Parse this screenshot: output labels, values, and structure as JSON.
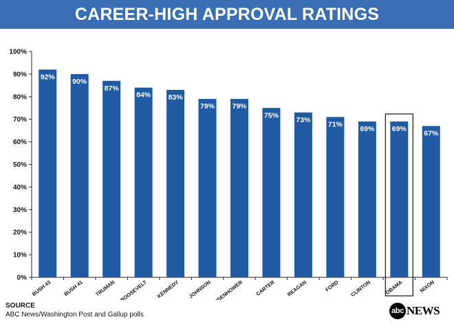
{
  "header": {
    "title": "CAREER-HIGH APPROVAL RATINGS"
  },
  "footer": {
    "source_label": "SOURCE",
    "source_text": "ABC News/Washington Post and Gallup polls",
    "logo_mark": "abc",
    "logo_text": "NEWS"
  },
  "colors": {
    "bar": "#1f5aa3",
    "title_bar": "#3a6fb5",
    "highlight_border": "#111111"
  },
  "chart_data": {
    "type": "bar",
    "title": "CAREER-HIGH APPROVAL RATINGS",
    "categories": [
      "BUSH 43",
      "BUSH 41",
      "TRUMAN",
      "ROOSEVELT",
      "KENNEDY",
      "JOHNSON",
      "EISENHOWER",
      "CARTER",
      "REAGAN",
      "FORD",
      "CLINTON",
      "OBAMA",
      "NIXON"
    ],
    "values": [
      92,
      90,
      87,
      84,
      83,
      79,
      79,
      75,
      73,
      71,
      69,
      69,
      67
    ],
    "data_labels": [
      "92%",
      "90%",
      "87%",
      "84%",
      "83%",
      "79%",
      "79%",
      "75%",
      "73%",
      "71%",
      "69%",
      "69%",
      "67%"
    ],
    "highlighted_category": "OBAMA",
    "ylim": [
      0,
      100
    ],
    "yticks": [
      0,
      10,
      20,
      30,
      40,
      50,
      60,
      70,
      80,
      90,
      100
    ],
    "ytick_labels": [
      "0%",
      "10%",
      "20%",
      "30%",
      "40%",
      "50%",
      "60%",
      "70%",
      "80%",
      "90%",
      "100%"
    ],
    "xlabel": "",
    "ylabel": "",
    "grid": false,
    "legend": "none"
  }
}
